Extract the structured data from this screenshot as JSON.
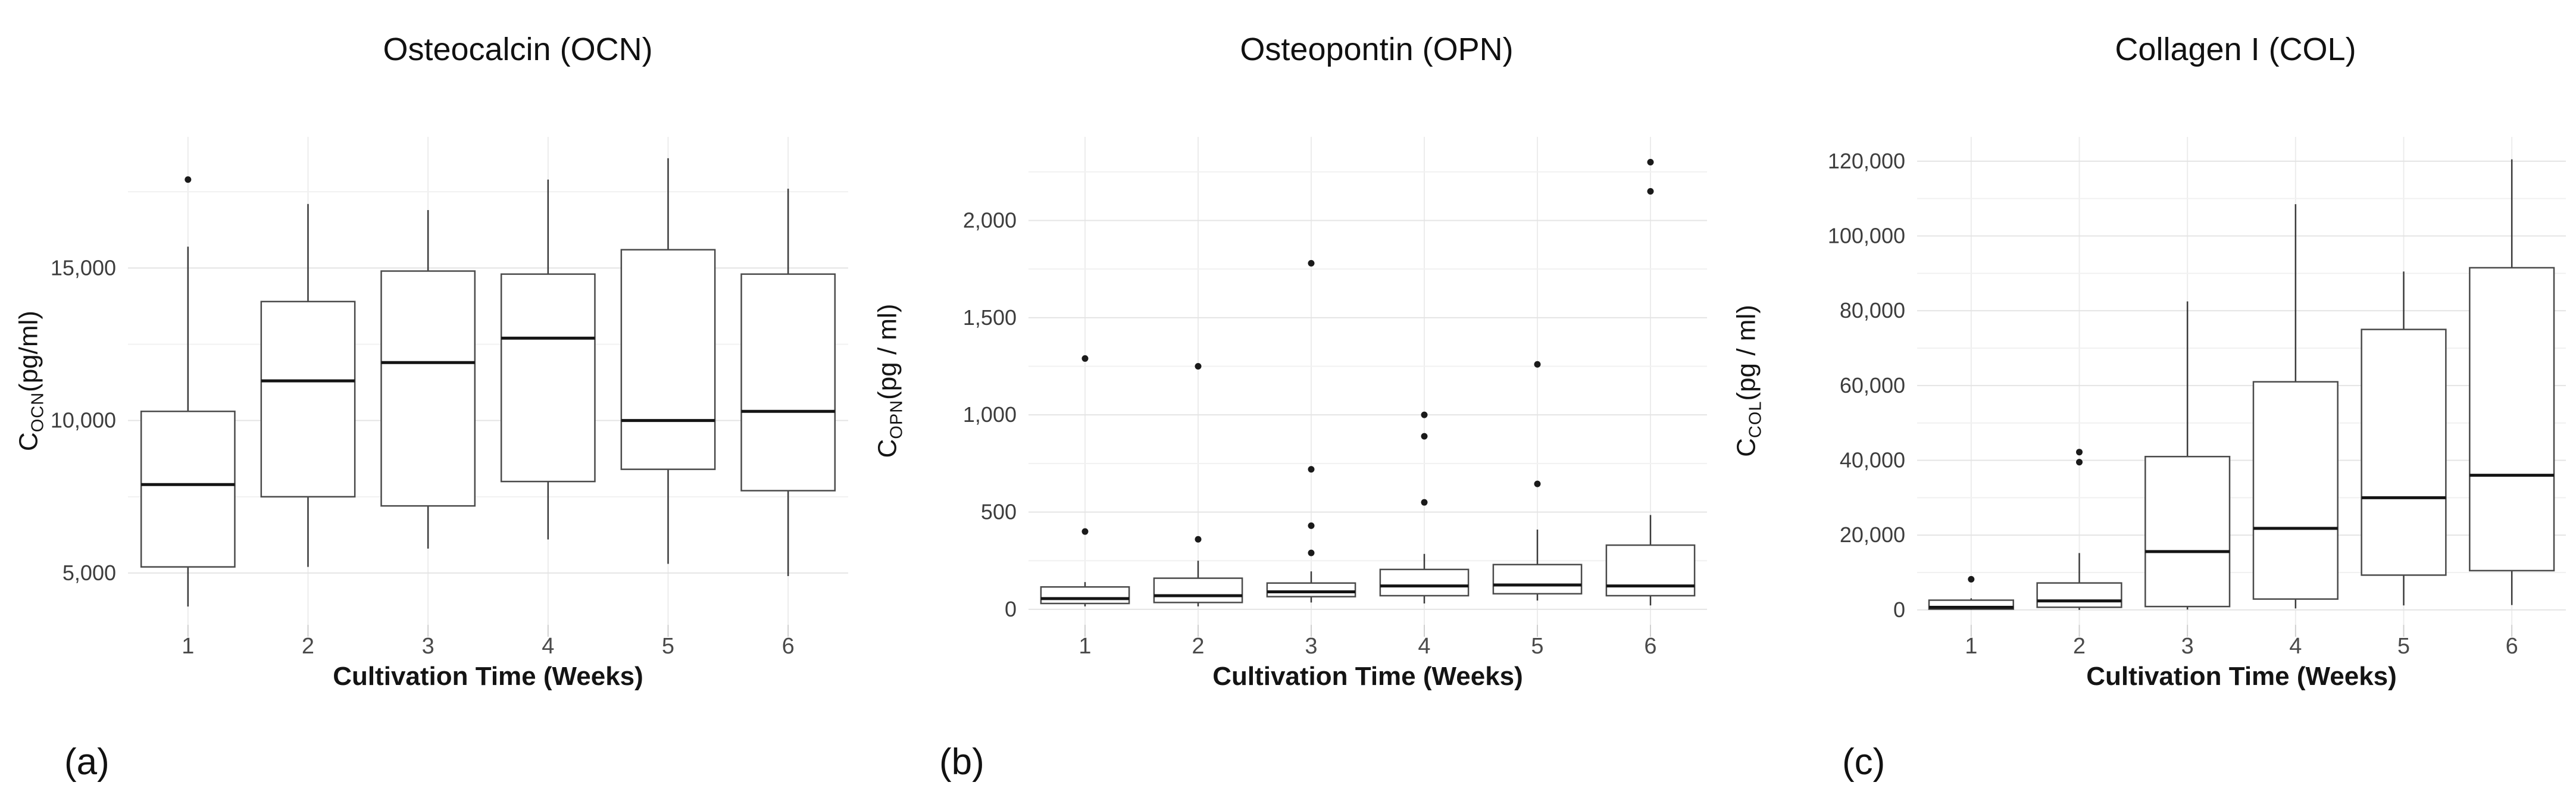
{
  "figure": {
    "panels": [
      {
        "letter": "(a)",
        "y_axis": {
          "prefix": "C",
          "subscript": "OCN",
          "suffix": "(pg/ml)"
        }
      },
      {
        "letter": "(b)",
        "y_axis": {
          "prefix": "C",
          "subscript": "OPN",
          "suffix": "(pg / ml)"
        }
      },
      {
        "letter": "(c)",
        "y_axis": {
          "prefix": "C",
          "subscript": "COL",
          "suffix": "(pg / ml)"
        }
      }
    ]
  },
  "chart_data": [
    {
      "type": "box",
      "title": "Osteocalcin (OCN)",
      "xlabel": "Cultivation Time (Weeks)",
      "ylabel": "C_OCN (pg/ml)",
      "categories": [
        "1",
        "2",
        "3",
        "4",
        "5",
        "6"
      ],
      "ylim": [
        3300,
        19300
      ],
      "yticks": [
        5000,
        10000,
        15000
      ],
      "yticks_minor": [
        7500,
        12500,
        17500
      ],
      "grid": true,
      "boxes": [
        {
          "week": 1,
          "low": 3900,
          "q1": 5200,
          "median": 7900,
          "q3": 10300,
          "high": 15700,
          "outliers": [
            17900
          ]
        },
        {
          "week": 2,
          "low": 5200,
          "q1": 7500,
          "median": 11300,
          "q3": 13900,
          "high": 17100,
          "outliers": []
        },
        {
          "week": 3,
          "low": 5800,
          "q1": 7200,
          "median": 11900,
          "q3": 14900,
          "high": 16900,
          "outliers": []
        },
        {
          "week": 4,
          "low": 6100,
          "q1": 8000,
          "median": 12700,
          "q3": 14800,
          "high": 17900,
          "outliers": []
        },
        {
          "week": 5,
          "low": 5300,
          "q1": 8400,
          "median": 10000,
          "q3": 15600,
          "high": 18600,
          "outliers": []
        },
        {
          "week": 6,
          "low": 4900,
          "q1": 7700,
          "median": 10300,
          "q3": 14800,
          "high": 17600,
          "outliers": []
        }
      ]
    },
    {
      "type": "box",
      "title": "Osteopontin (OPN)",
      "xlabel": "Cultivation Time (Weeks)",
      "ylabel": "C_OPN (pg/ml)",
      "categories": [
        "1",
        "2",
        "3",
        "4",
        "5",
        "6"
      ],
      "ylim": [
        -80,
        2430
      ],
      "yticks": [
        0,
        500,
        1000,
        1500,
        2000
      ],
      "yticks_minor": [
        250,
        750,
        1250,
        1750,
        2250
      ],
      "grid": true,
      "boxes": [
        {
          "week": 1,
          "low": 15,
          "q1": 30,
          "median": 55,
          "q3": 115,
          "high": 140,
          "outliers": [
            400,
            1290
          ]
        },
        {
          "week": 2,
          "low": 15,
          "q1": 35,
          "median": 70,
          "q3": 160,
          "high": 250,
          "outliers": [
            360,
            1250
          ]
        },
        {
          "week": 3,
          "low": 35,
          "q1": 65,
          "median": 90,
          "q3": 135,
          "high": 195,
          "outliers": [
            290,
            430,
            720,
            1780
          ]
        },
        {
          "week": 4,
          "low": 30,
          "q1": 70,
          "median": 120,
          "q3": 205,
          "high": 285,
          "outliers": [
            550,
            890,
            1000
          ]
        },
        {
          "week": 5,
          "low": 45,
          "q1": 80,
          "median": 125,
          "q3": 230,
          "high": 410,
          "outliers": [
            645,
            1260
          ]
        },
        {
          "week": 6,
          "low": 20,
          "q1": 70,
          "median": 120,
          "q3": 330,
          "high": 485,
          "outliers": [
            2150,
            2300
          ]
        }
      ]
    },
    {
      "type": "box",
      "title": "Collagen I (COL)",
      "xlabel": "Cultivation Time (Weeks)",
      "ylabel": "C_COL (pg/ml)",
      "categories": [
        "1",
        "2",
        "3",
        "4",
        "5",
        "6"
      ],
      "ylim": [
        -4000,
        126500
      ],
      "yticks": [
        0,
        20000,
        40000,
        60000,
        80000,
        100000,
        120000
      ],
      "yticks_minor": [
        10000,
        30000,
        50000,
        70000,
        90000,
        110000
      ],
      "grid": true,
      "boxes": [
        {
          "week": 1,
          "low": 0,
          "q1": 200,
          "median": 700,
          "q3": 2600,
          "high": 3100,
          "outliers": [
            8200
          ]
        },
        {
          "week": 2,
          "low": 0,
          "q1": 700,
          "median": 2400,
          "q3": 7200,
          "high": 15200,
          "outliers": [
            39500,
            42200
          ]
        },
        {
          "week": 3,
          "low": 100,
          "q1": 900,
          "median": 15600,
          "q3": 41000,
          "high": 82500,
          "outliers": []
        },
        {
          "week": 4,
          "low": 400,
          "q1": 2900,
          "median": 21800,
          "q3": 61000,
          "high": 108500,
          "outliers": []
        },
        {
          "week": 5,
          "low": 1200,
          "q1": 9300,
          "median": 30000,
          "q3": 75000,
          "high": 90500,
          "outliers": []
        },
        {
          "week": 6,
          "low": 1300,
          "q1": 10500,
          "median": 36000,
          "q3": 91500,
          "high": 120500,
          "outliers": []
        }
      ]
    }
  ],
  "style": {
    "background_color": "#ffffff",
    "major_grid_color": "#e4e4e4",
    "minor_grid_color": "#f1f1f1",
    "vertical_grid_color": "#ececec",
    "box_stroke_color": "#4a4a4a",
    "median_color": "#141414",
    "whisker_color": "#3a3a3a",
    "outlier_color": "#1a1a1a",
    "tick_label_color": "#3d3d3d",
    "x_tick_label_color": "#4a4a4a"
  }
}
